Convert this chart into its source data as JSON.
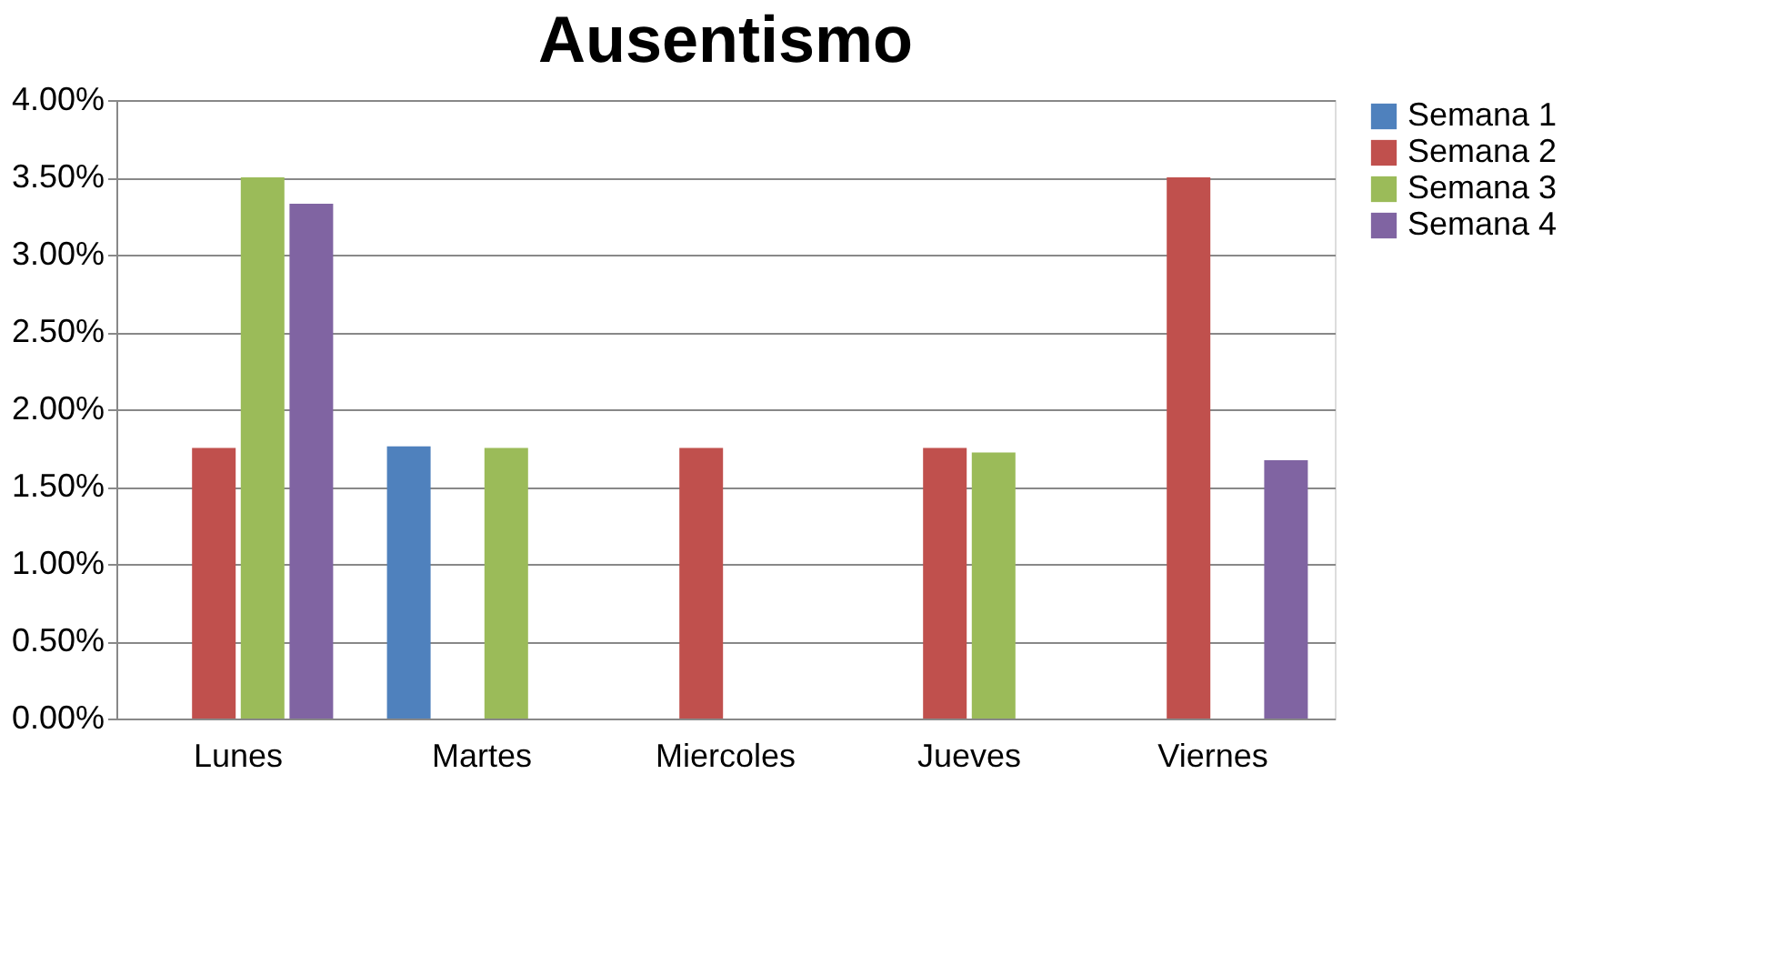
{
  "chart_data": {
    "type": "bar",
    "title": "Ausentismo",
    "categories": [
      "Lunes",
      "Martes",
      "Miercoles",
      "Jueves",
      "Viernes"
    ],
    "series": [
      {
        "name": "Semana 1",
        "color": "#4f81bd",
        "values": [
          0,
          1.76,
          0,
          0,
          0
        ]
      },
      {
        "name": "Semana 2",
        "color": "#c0504d",
        "values": [
          1.75,
          0,
          1.75,
          1.75,
          3.5
        ]
      },
      {
        "name": "Semana 3",
        "color": "#9bbb59",
        "values": [
          3.5,
          1.75,
          0,
          1.72,
          0
        ]
      },
      {
        "name": "Semana 4",
        "color": "#8064a2",
        "values": [
          3.33,
          0,
          0,
          0,
          1.67
        ]
      }
    ],
    "ylim": [
      0,
      4
    ],
    "yticks": [
      {
        "value": 0,
        "label": "0.00%"
      },
      {
        "value": 0.5,
        "label": "0.50%"
      },
      {
        "value": 1,
        "label": "1.00%"
      },
      {
        "value": 1.5,
        "label": "1.50%"
      },
      {
        "value": 2,
        "label": "2.00%"
      },
      {
        "value": 2.5,
        "label": "2.50%"
      },
      {
        "value": 3,
        "label": "3.00%"
      },
      {
        "value": 3.5,
        "label": "3.50%"
      },
      {
        "value": 4,
        "label": "4.00%"
      }
    ],
    "grid": "y",
    "legend": "right"
  }
}
